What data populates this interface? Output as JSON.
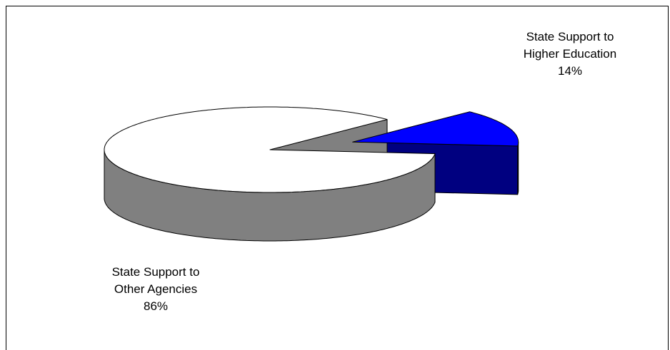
{
  "chart_data": {
    "type": "pie",
    "three_d": true,
    "categories": [
      "State Support to Higher Education",
      "State Support to Other Agencies"
    ],
    "values": [
      14,
      86
    ],
    "value_labels": [
      "14%",
      "86%"
    ],
    "colors": [
      "#0000ff",
      "#ffffff"
    ],
    "exploded": [
      true,
      false
    ]
  }
}
